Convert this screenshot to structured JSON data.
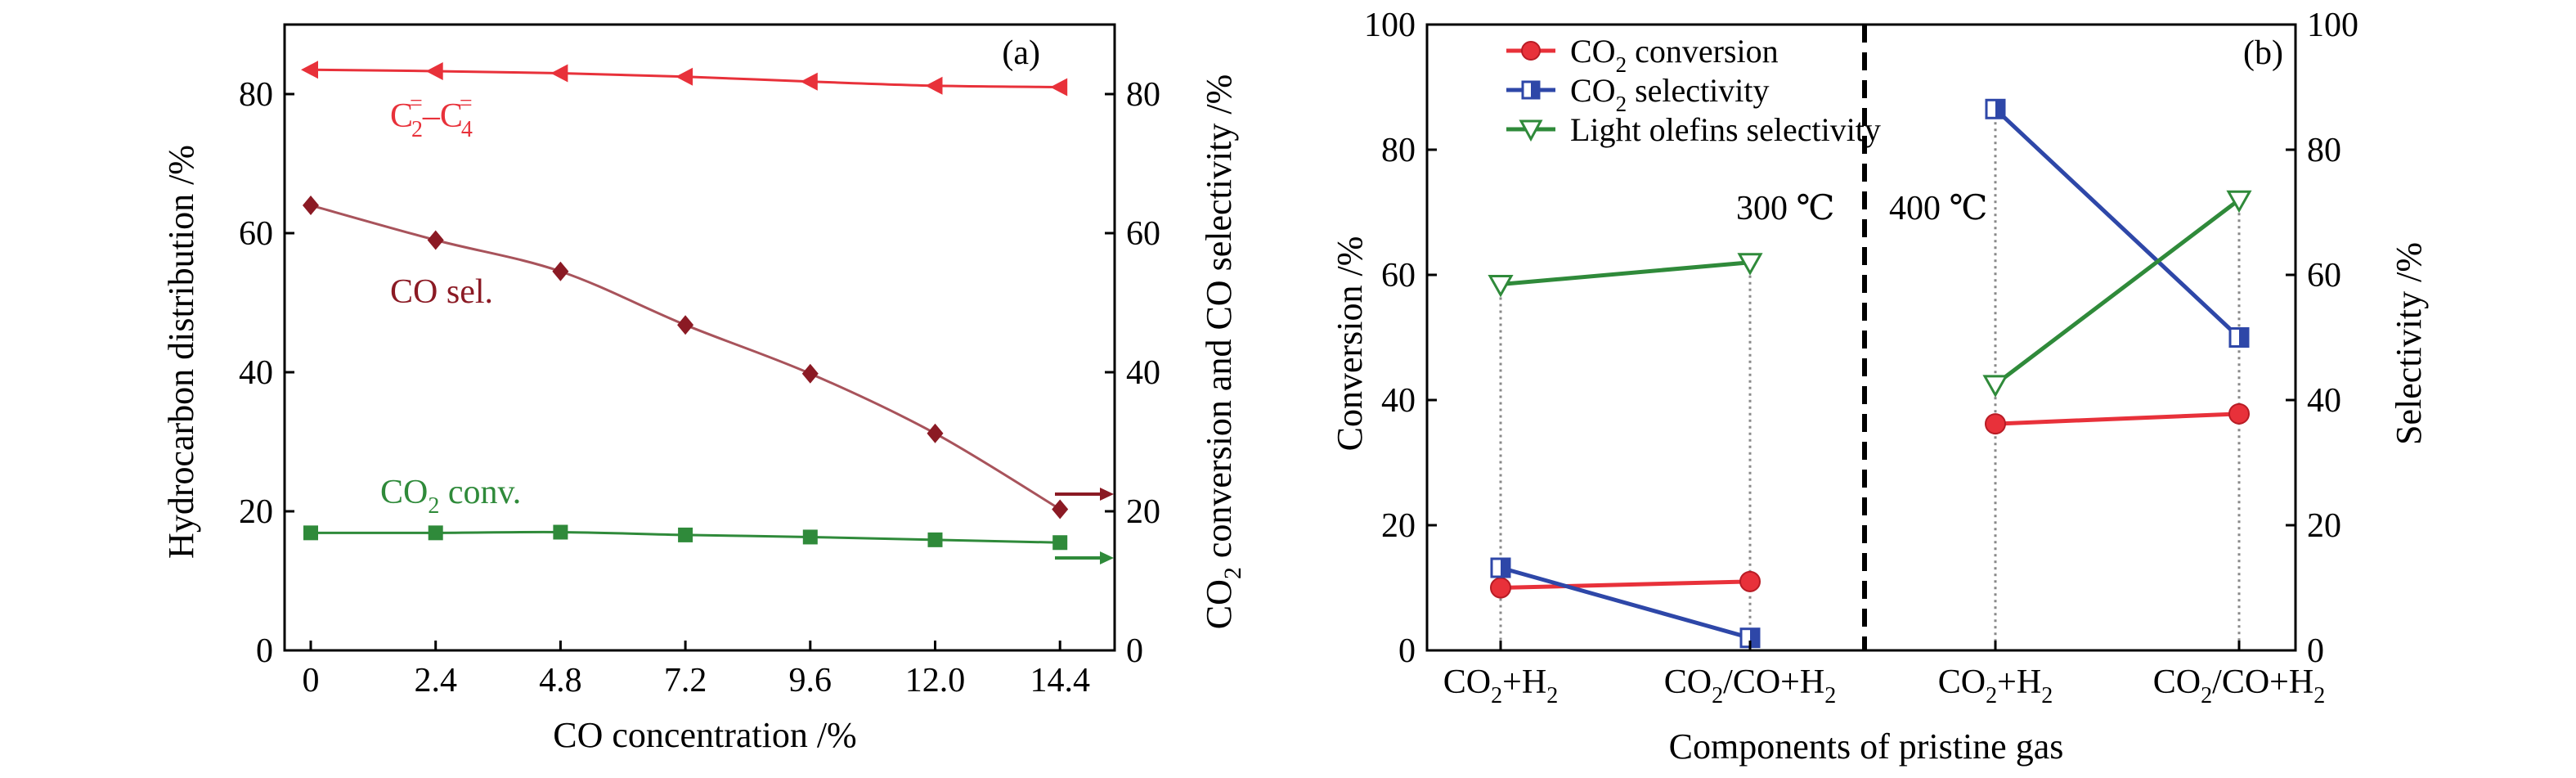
{
  "chart_data": [
    {
      "type": "line",
      "panel_label": "(a)",
      "xlabel": "CO concentration /%",
      "ylabel_left": "Hydrocarbon distribution /%",
      "ylabel_right_pre": "CO",
      "ylabel_right_sub": "2",
      "ylabel_right_post": " conversion and CO selectivity /%",
      "x_tick_labels": [
        "0",
        "2.4",
        "4.8",
        "7.2",
        "9.6",
        "12.0",
        "14.4"
      ],
      "x": [
        0,
        2.4,
        4.8,
        7.2,
        9.6,
        12.0,
        14.4
      ],
      "ylim_left": [
        0,
        90
      ],
      "ylim_right": [
        0,
        90
      ],
      "y_ticks_left": [
        0,
        20,
        40,
        60,
        80
      ],
      "y_ticks_right": [
        0,
        20,
        40,
        60,
        80
      ],
      "series": [
        {
          "axis": "left",
          "color": "#e8313a",
          "marker": "triangle-left",
          "values": [
            83.5,
            83.3,
            83.0,
            82.5,
            81.8,
            81.2,
            81.0
          ]
        },
        {
          "axis": "right",
          "color": "#8b1a24",
          "marker": "diamond",
          "values": [
            64.0,
            59.0,
            54.5,
            46.8,
            39.8,
            31.2,
            20.3
          ]
        },
        {
          "axis": "right",
          "color": "#2f8a3a",
          "marker": "square",
          "values": [
            16.9,
            16.9,
            17.0,
            16.6,
            16.3,
            15.9,
            15.5
          ]
        }
      ],
      "annotations": {
        "olefin_main": "C",
        "olefin_sub_a": "2",
        "olefin_sup": "=",
        "olefin_dash": "–C",
        "olefin_sub_b": "4",
        "co_sel": "CO sel.",
        "co2_conv_pre": "CO",
        "co2_conv_sub": "2",
        "co2_conv_post": " conv."
      }
    },
    {
      "type": "line",
      "panel_label": "(b)",
      "xlabel": "Components of pristine gas",
      "ylabel_left": "Conversion /%",
      "ylabel_right": "Selectivity /%",
      "ylim_left": [
        0,
        100
      ],
      "ylim_right": [
        0,
        100
      ],
      "y_ticks_left": [
        0,
        20,
        40,
        60,
        80,
        100
      ],
      "y_ticks_right": [
        0,
        20,
        40,
        60,
        80,
        100
      ],
      "categories": [
        {
          "pre": "CO",
          "sub": "2",
          "mid": "+H",
          "sub2": "2"
        },
        {
          "pre": "CO",
          "sub": "2",
          "mid": "/CO+H",
          "sub2": "2"
        },
        {
          "pre": "CO",
          "sub": "2",
          "mid": "+H",
          "sub2": "2"
        },
        {
          "pre": "CO",
          "sub": "2",
          "mid": "/CO+H",
          "sub2": "2"
        }
      ],
      "temperature_labels": [
        "300 ℃",
        "400 ℃"
      ],
      "legend_position": "top-left",
      "series": [
        {
          "name_pre": "CO",
          "name_sub": "2",
          "name_post": " conversion",
          "color": "#e8313a",
          "marker": "circle",
          "values": [
            10.0,
            11.0,
            36.2,
            37.8
          ]
        },
        {
          "name_pre": "CO",
          "name_sub": "2",
          "name_post": " selectivity",
          "color": "#2e47a8",
          "marker": "square-open",
          "values": [
            13.2,
            2.0,
            86.5,
            50.0
          ]
        },
        {
          "name_pre": "",
          "name_sub": "",
          "name_post": "Light olefins selectivity",
          "color": "#2f8a3a",
          "marker": "triangle-down-open",
          "values": [
            58.5,
            62.0,
            42.5,
            72.0
          ]
        }
      ]
    }
  ]
}
